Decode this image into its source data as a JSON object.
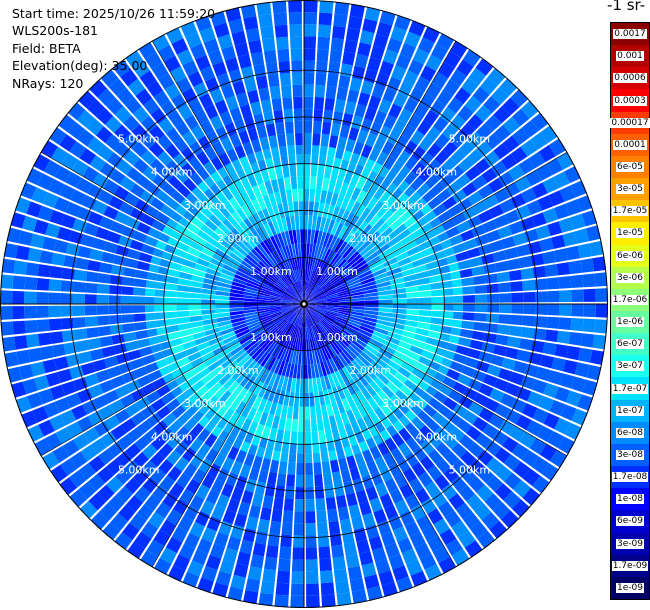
{
  "header": {
    "start_time": "Start time: 2025/10/26 11:59:20",
    "instrument": "WLS200s-181",
    "field": "Field: BETA",
    "elevation": "Elevation(deg): 35.00",
    "nrays": "NRays: 120"
  },
  "colorbar": {
    "title": "-1 sr-",
    "labels": [
      "0.0017",
      "0.001",
      "0.0006",
      "0.0003",
      "0.00017",
      "0.0001",
      "6e-05",
      "3e-05",
      "1.7e-05",
      "1e-05",
      "6e-06",
      "3e-06",
      "1.7e-06",
      "1e-06",
      "6e-07",
      "3e-07",
      "1.7e-07",
      "1e-07",
      "6e-08",
      "3e-08",
      "1.7e-08",
      "1e-08",
      "6e-09",
      "3e-09",
      "1.7e-09",
      "1e-09"
    ],
    "colors": [
      "#8b0000",
      "#b30000",
      "#d40000",
      "#ff0000",
      "#ff3c00",
      "#ff6000",
      "#ff8000",
      "#ffa000",
      "#ffc400",
      "#ffee00",
      "#e6ff1a",
      "#b4ff4a",
      "#8cff7a",
      "#66ffa0",
      "#40ffc8",
      "#1affee",
      "#00e0ff",
      "#00b4ff",
      "#008cff",
      "#0060ff",
      "#0030ff",
      "#0000ff",
      "#0000d0",
      "#0000b0",
      "#00008c",
      "#000066"
    ]
  },
  "chart_data": {
    "type": "heatmap",
    "projection": "polar-ppi",
    "field": "BETA",
    "elevation_deg": 35.0,
    "n_rays": 120,
    "range_rings_km": [
      1.0,
      2.0,
      3.0,
      4.0,
      5.0
    ],
    "range_ring_labels": [
      "1.00km",
      "2.00km",
      "3.00km",
      "4.00km",
      "5.00km"
    ],
    "max_range_km": 6.5,
    "radial_band_levels": [
      {
        "range_km": [
          0.0,
          1.0
        ],
        "level": "1e-08"
      },
      {
        "range_km": [
          1.0,
          1.6
        ],
        "level": "1.7e-08"
      },
      {
        "range_km": [
          1.6,
          2.2
        ],
        "level": "1e-07"
      },
      {
        "range_km": [
          2.2,
          3.0
        ],
        "level": "1.7e-07"
      },
      {
        "range_km": [
          3.0,
          3.4
        ],
        "level": "1e-07"
      },
      {
        "range_km": [
          3.4,
          6.5
        ],
        "level": "3e-08"
      }
    ],
    "colorscale": "log",
    "grid": true
  }
}
